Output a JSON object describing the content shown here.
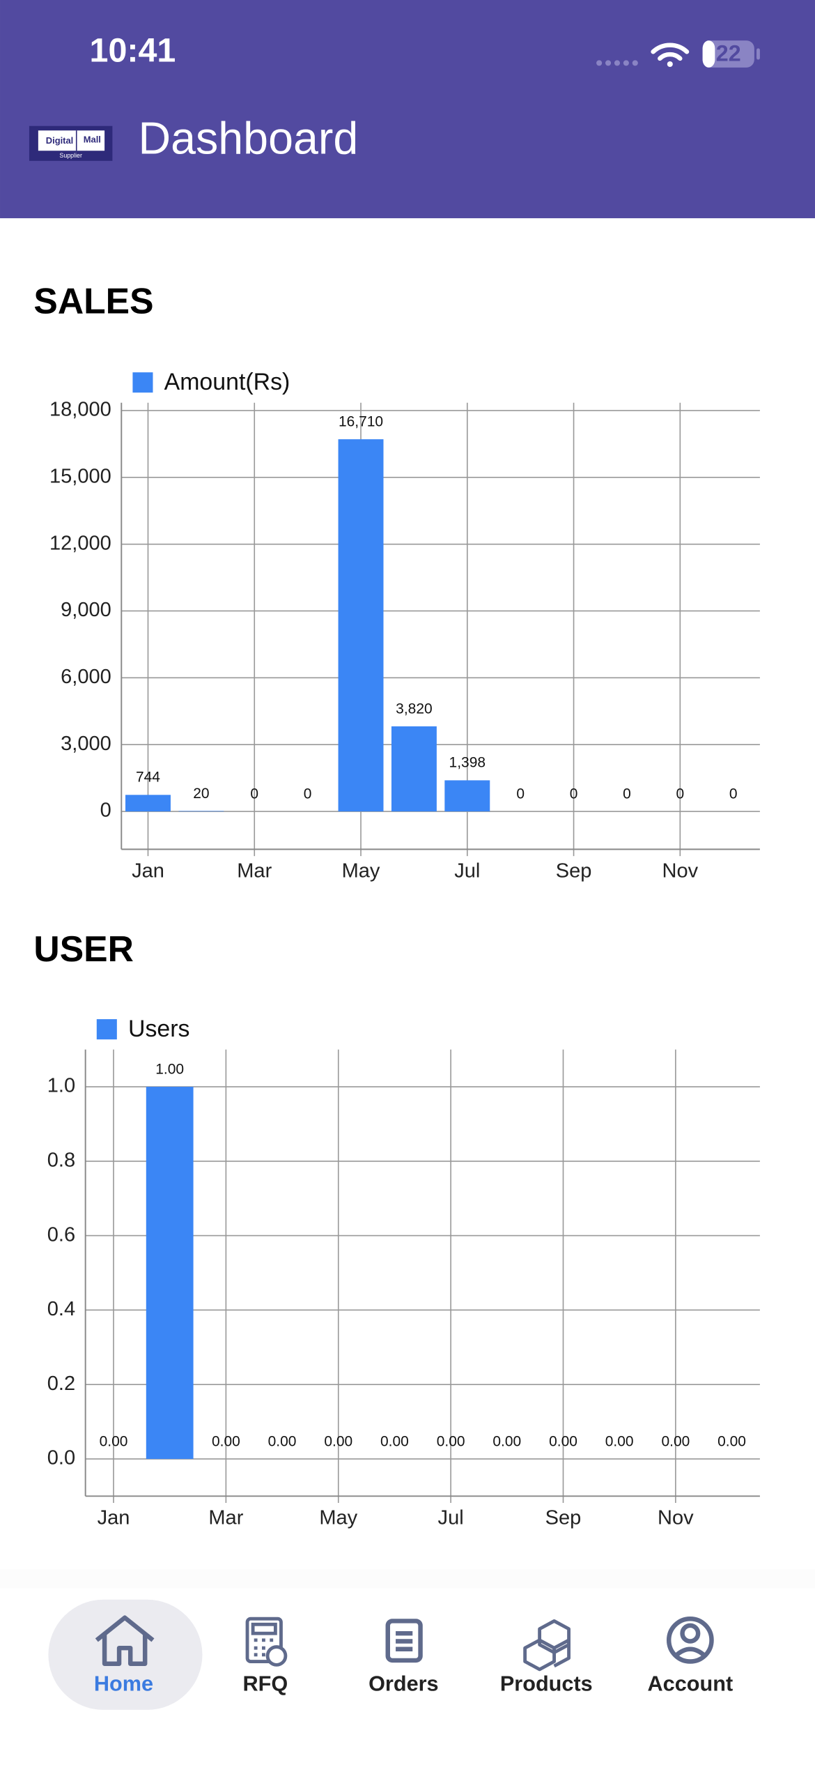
{
  "status_bar": {
    "time": "10:41",
    "battery": "22"
  },
  "header": {
    "logo": [
      "Digital",
      "Mall",
      "Supplier"
    ],
    "title": "Dashboard"
  },
  "chart_data": [
    {
      "type": "bar",
      "title": "SALES",
      "categories": [
        "Jan",
        null,
        "Mar",
        null,
        "May",
        null,
        "Jul",
        null,
        "Sep",
        null,
        "Nov",
        null
      ],
      "series": [
        {
          "name": "Amount(Rs)",
          "color": "#3b86f5",
          "values": [
            744,
            20,
            0,
            0,
            16710,
            3820,
            1398,
            0,
            0,
            0,
            0,
            0
          ],
          "value_labels": [
            "744",
            "20",
            "0",
            "0",
            "16,710",
            "3,820",
            "1,398",
            "0",
            "0",
            "0",
            "0",
            "0"
          ]
        }
      ],
      "ylim": [
        -1700,
        18350
      ],
      "yticks": [
        0,
        {
          "value": 3000,
          "label": "3,000"
        },
        {
          "value": 6000,
          "label": "6,000"
        },
        {
          "value": 9000,
          "label": "9,000"
        },
        {
          "value": 12000,
          "label": "12,000"
        },
        {
          "value": 15000,
          "label": "15,000"
        },
        {
          "value": 18000,
          "label": "18,000"
        }
      ],
      "grid": true,
      "legend": "top-left"
    },
    {
      "type": "bar",
      "title": "USER",
      "categories": [
        "Jan",
        null,
        "Mar",
        null,
        "May",
        null,
        "Jul",
        null,
        "Sep",
        null,
        "Nov",
        null
      ],
      "series": [
        {
          "name": "Users",
          "color": "#3b86f5",
          "values": [
            0,
            1,
            0,
            0,
            0,
            0,
            0,
            0,
            0,
            0,
            0,
            0
          ],
          "value_labels": [
            "0.00",
            "1.00",
            "0.00",
            "0.00",
            "0.00",
            "0.00",
            "0.00",
            "0.00",
            "0.00",
            "0.00",
            "0.00",
            "0.00"
          ]
        }
      ],
      "ylim": [
        -0.1,
        1.1
      ],
      "yticks": [
        {
          "value": 0,
          "label": "0.0"
        },
        0.2,
        0.4,
        0.6,
        0.8,
        {
          "value": 1,
          "label": "1.0"
        }
      ],
      "grid": true,
      "legend": "top-left"
    }
  ],
  "nav": {
    "items": [
      "Home",
      "RFQ",
      "Orders",
      "Products",
      "Account"
    ]
  }
}
